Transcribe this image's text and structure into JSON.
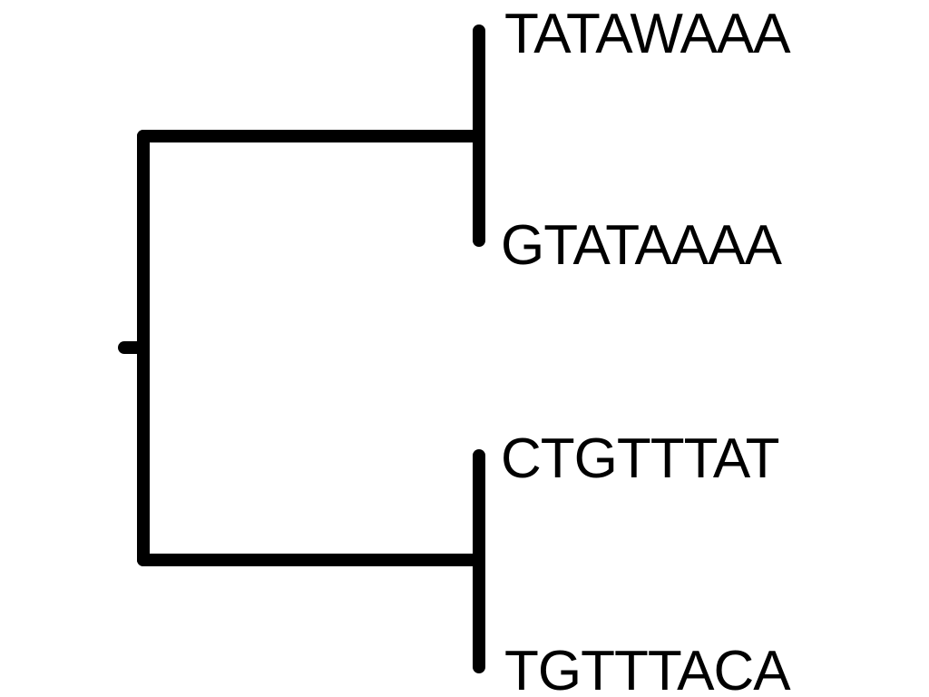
{
  "tree": {
    "leaves": [
      {
        "id": "leaf1",
        "label": "TATAWAAA"
      },
      {
        "id": "leaf2",
        "label": "GTATAAAA"
      },
      {
        "id": "leaf3",
        "label": "CTGTTTAT"
      },
      {
        "id": "leaf4",
        "label": "TGTTTACA"
      }
    ],
    "clades": [
      {
        "id": "clade-upper",
        "members": [
          "leaf1",
          "leaf2"
        ]
      },
      {
        "id": "clade-lower",
        "members": [
          "leaf3",
          "leaf4"
        ]
      }
    ],
    "line_color": "#000000"
  }
}
